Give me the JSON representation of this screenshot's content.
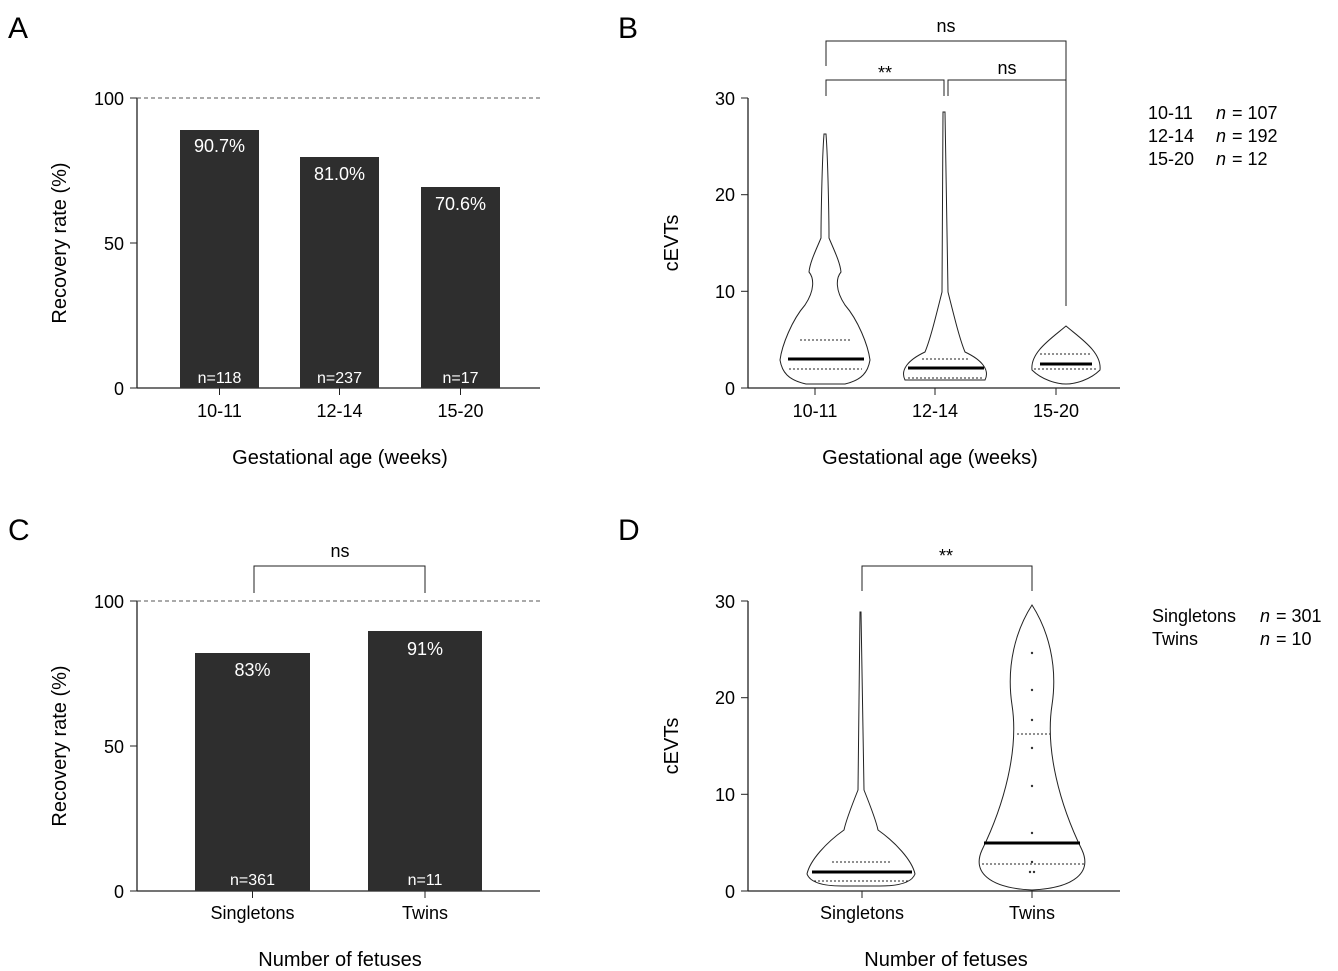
{
  "colors": {
    "bar": "#2e2e2e",
    "axis": "#222222",
    "text": "#222222",
    "bar_label": "#ffffff"
  },
  "chart_data": [
    {
      "panel": "A",
      "type": "bar",
      "categories": [
        "10-11",
        "12-14",
        "15-20"
      ],
      "values": [
        90.7,
        81.0,
        70.6
      ],
      "value_labels": [
        "90.7%",
        "81.0%",
        "70.6%"
      ],
      "n_labels": [
        "n=118",
        "n=237",
        "n=17"
      ],
      "xlabel": "Gestational age (weeks)",
      "ylabel": "Recovery rate (%)",
      "ylim": [
        0,
        100
      ],
      "yticks": [
        "0",
        "50",
        "100"
      ],
      "reference_line": 100
    },
    {
      "panel": "B",
      "type": "violin",
      "categories": [
        "10-11",
        "12-14",
        "15-20"
      ],
      "medians": [
        3,
        2,
        2.5
      ],
      "quartiles": [
        [
          2,
          5
        ],
        [
          1,
          3
        ],
        [
          2,
          3.5
        ]
      ],
      "max": [
        26,
        28,
        6
      ],
      "xlabel": "Gestational age (weeks)",
      "ylabel": "cEVTs",
      "ylim": [
        0,
        30
      ],
      "yticks": [
        "0",
        "10",
        "20",
        "30"
      ],
      "legend": [
        {
          "group": "10-11",
          "n": "n",
          "count": "= 107"
        },
        {
          "group": "12-14",
          "n": "n",
          "count": "= 192"
        },
        {
          "group": "15-20",
          "n": "n",
          "count": "= 12"
        }
      ],
      "significance": [
        {
          "from": "10-11",
          "to": "12-14",
          "label": "**"
        },
        {
          "from": "12-14",
          "to": "15-20",
          "label": "ns"
        },
        {
          "from": "10-11",
          "to": "15-20",
          "label": "ns"
        }
      ]
    },
    {
      "panel": "C",
      "type": "bar",
      "categories": [
        "Singletons",
        "Twins"
      ],
      "values": [
        83,
        91
      ],
      "value_labels": [
        "83%",
        "91%"
      ],
      "n_labels": [
        "n=361",
        "n=11"
      ],
      "xlabel": "Number of fetuses",
      "ylabel": "Recovery rate (%)",
      "ylim": [
        0,
        100
      ],
      "yticks": [
        "0",
        "50",
        "100"
      ],
      "reference_line": 100,
      "significance": [
        {
          "from": "Singletons",
          "to": "Twins",
          "label": "ns"
        }
      ]
    },
    {
      "panel": "D",
      "type": "violin",
      "categories": [
        "Singletons",
        "Twins"
      ],
      "medians": [
        2,
        5
      ],
      "quartiles": [
        [
          1,
          3
        ],
        [
          2.8,
          16.2
        ]
      ],
      "max": [
        28.5,
        29.5
      ],
      "xlabel": "Number of fetuses",
      "ylabel": "cEVTs",
      "ylim": [
        0,
        30
      ],
      "yticks": [
        "0",
        "10",
        "20",
        "30"
      ],
      "legend": [
        {
          "group": "Singletons",
          "n": "n",
          "count": "= 301"
        },
        {
          "group": "Twins",
          "n": "n",
          "count": "= 10"
        }
      ],
      "significance": [
        {
          "from": "Singletons",
          "to": "Twins",
          "label": "**"
        }
      ]
    }
  ]
}
